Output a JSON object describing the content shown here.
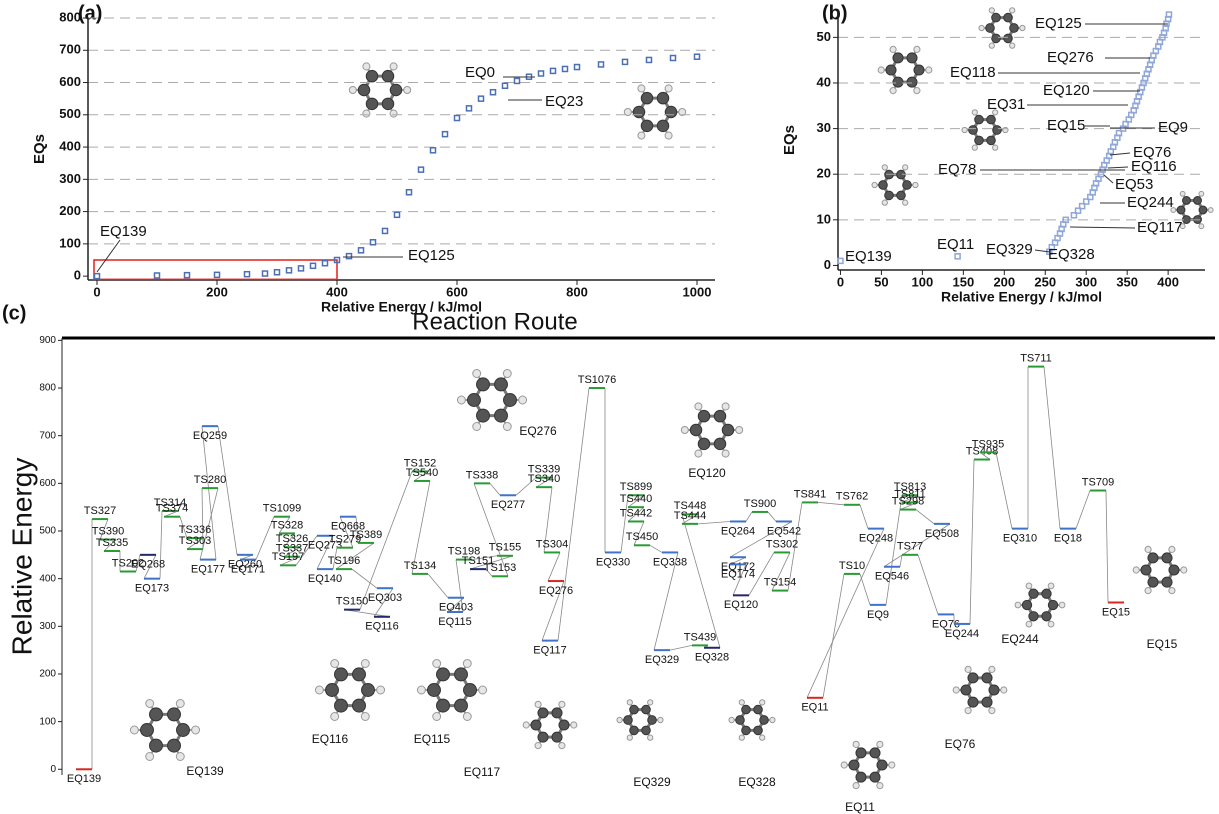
{
  "chart_data": [
    {
      "type": "scatter",
      "panel_label": "(a)",
      "x_label": "Relative Energy / kJ/mol",
      "y_label": "EQs",
      "color": "#4a6fb5",
      "x": [
        0,
        100,
        150,
        200,
        250,
        280,
        300,
        320,
        340,
        360,
        380,
        400,
        420,
        440,
        460,
        480,
        500,
        520,
        540,
        560,
        580,
        600,
        620,
        640,
        660,
        680,
        700,
        720,
        740,
        760,
        780,
        800,
        840,
        880,
        920,
        960,
        1000
      ],
      "values": [
        0,
        2,
        3,
        4,
        6,
        8,
        12,
        18,
        24,
        32,
        40,
        50,
        62,
        80,
        105,
        140,
        190,
        260,
        330,
        390,
        440,
        490,
        520,
        550,
        570,
        590,
        605,
        618,
        628,
        636,
        642,
        648,
        656,
        664,
        670,
        676,
        680
      ],
      "xlim": [
        -15,
        1030
      ],
      "ylim": [
        -12,
        800
      ],
      "xticks": [
        0,
        200,
        400,
        600,
        800,
        1000
      ],
      "yticks": [
        0,
        100,
        200,
        300,
        400,
        500,
        600,
        700,
        800
      ],
      "grid": true,
      "highlight_box": {
        "x": [
          -5,
          400
        ],
        "y": [
          -10,
          50
        ],
        "color": "#e0201a"
      },
      "annotations": [
        {
          "text": "EQ139",
          "color": "#111111"
        },
        {
          "text": "EQ125",
          "color": "#111111"
        },
        {
          "text": "EQ0",
          "color": "#111111"
        },
        {
          "text": "EQ23",
          "color": "#111111"
        }
      ]
    },
    {
      "type": "scatter",
      "panel_label": "(b)",
      "x_label": "Relative Energy / kJ/mol",
      "y_label": "EQs",
      "color": "#8fa6d8",
      "x": [
        0,
        143,
        255,
        258,
        262,
        265,
        268,
        270,
        272,
        275,
        285,
        290,
        295,
        300,
        305,
        308,
        310,
        312,
        315,
        318,
        320,
        322,
        325,
        328,
        330,
        333,
        335,
        338,
        340,
        345,
        348,
        352,
        355,
        358,
        360,
        362,
        364,
        366,
        368,
        370,
        372,
        374,
        376,
        378,
        380,
        382,
        385,
        388,
        390,
        393,
        395,
        397,
        398,
        400,
        401
      ],
      "values": [
        1,
        2,
        3,
        4,
        5,
        6,
        7,
        8,
        9,
        10,
        11,
        12,
        13,
        14,
        15,
        16,
        17,
        18,
        19,
        20,
        21,
        22,
        23,
        24,
        25,
        26,
        27,
        28,
        29,
        30,
        31,
        32,
        33,
        34,
        35,
        36,
        37,
        38,
        39,
        40,
        41,
        42,
        43,
        44,
        45,
        46,
        47,
        48,
        49,
        50,
        51,
        52,
        53,
        54,
        55
      ],
      "xlim": [
        -3,
        445
      ],
      "ylim": [
        -1,
        56
      ],
      "xticks": [
        0,
        50,
        100,
        150,
        200,
        250,
        300,
        350,
        400
      ],
      "yticks": [
        0,
        10,
        20,
        30,
        40,
        50
      ],
      "grid": true,
      "annotations": [
        {
          "text": "EQ125",
          "color": "#111111"
        },
        {
          "text": "EQ276",
          "color": "#d42a1f"
        },
        {
          "text": "EQ118",
          "color": "#111111"
        },
        {
          "text": "EQ120",
          "color": "#555555"
        },
        {
          "text": "EQ31",
          "color": "#111111"
        },
        {
          "text": "EQ15",
          "color": "#d42a1f"
        },
        {
          "text": "EQ9",
          "color": "#555555"
        },
        {
          "text": "EQ76",
          "color": "#555555"
        },
        {
          "text": "EQ116",
          "color": "#555555"
        },
        {
          "text": "EQ78",
          "color": "#111111"
        },
        {
          "text": "EQ53",
          "color": "#111111"
        },
        {
          "text": "EQ244",
          "color": "#555555"
        },
        {
          "text": "EQ117",
          "color": "#555555"
        },
        {
          "text": "EQ329",
          "color": "#555555"
        },
        {
          "text": "EQ328",
          "color": "#555555"
        },
        {
          "text": "EQ11",
          "color": "#d42a1f"
        },
        {
          "text": "EQ139",
          "color": "#d42a1f"
        }
      ]
    },
    {
      "type": "energy_diagram",
      "panel_label": "(c)",
      "title": "Reaction Route",
      "y_label": "Relative Energy",
      "ylim": [
        -12,
        905
      ],
      "yticks": [
        0,
        100,
        200,
        300,
        400,
        500,
        600,
        700,
        800,
        900
      ],
      "levels": [
        {
          "name": "EQ139",
          "value": 0,
          "color": "#d42a1f"
        },
        {
          "name": "TS327",
          "value": 525,
          "color": "#2a9a35"
        },
        {
          "name": "TS390",
          "value": 482,
          "color": "#2a9a35"
        },
        {
          "name": "TS335",
          "value": 458,
          "color": "#2a9a35"
        },
        {
          "name": "TS202",
          "value": 415,
          "color": "#2a9a35"
        },
        {
          "name": "EQ268",
          "value": 450,
          "color": "#22286a"
        },
        {
          "name": "EQ173",
          "value": 400,
          "color": "#3f72c8"
        },
        {
          "name": "TS314",
          "value": 542,
          "color": "#2a9a35"
        },
        {
          "name": "TS374",
          "value": 530,
          "color": "#2a9a35"
        },
        {
          "name": "TS336",
          "value": 485,
          "color": "#2a9a35"
        },
        {
          "name": "TS303",
          "value": 462,
          "color": "#2a9a35"
        },
        {
          "name": "TS280",
          "value": 590,
          "color": "#2a9a35"
        },
        {
          "name": "EQ177",
          "value": 440,
          "color": "#3f72c8"
        },
        {
          "name": "EQ259",
          "value": 720,
          "color": "#3f72c8"
        },
        {
          "name": "EQ260",
          "value": 450,
          "color": "#3f72c8"
        },
        {
          "name": "EQ171",
          "value": 440,
          "color": "#3f72c8"
        },
        {
          "name": "TS1099",
          "value": 530,
          "color": "#2a9a35"
        },
        {
          "name": "TS328",
          "value": 495,
          "color": "#2a9a35"
        },
        {
          "name": "TS326",
          "value": 466,
          "color": "#2a9a35"
        },
        {
          "name": "TS337",
          "value": 446,
          "color": "#2a9a35"
        },
        {
          "name": "TS197",
          "value": 428,
          "color": "#2a9a35"
        },
        {
          "name": "EQ273",
          "value": 490,
          "color": "#3f72c8"
        },
        {
          "name": "EQ140",
          "value": 420,
          "color": "#3f72c8"
        },
        {
          "name": "TS279",
          "value": 465,
          "color": "#2a9a35"
        },
        {
          "name": "EQ668",
          "value": 530,
          "color": "#3f72c8"
        },
        {
          "name": "TS389",
          "value": 475,
          "color": "#2a9a35"
        },
        {
          "name": "TS196",
          "value": 420,
          "color": "#2a9a35"
        },
        {
          "name": "EQ303",
          "value": 380,
          "color": "#3f72c8"
        },
        {
          "name": "EQ116",
          "value": 320,
          "color": "#22286a"
        },
        {
          "name": "TS150",
          "value": 335,
          "color": "#22286a"
        },
        {
          "name": "TS152",
          "value": 625,
          "color": "#2a9a35"
        },
        {
          "name": "TS540",
          "value": 605,
          "color": "#2a9a35"
        },
        {
          "name": "TS134",
          "value": 410,
          "color": "#2a9a35"
        },
        {
          "name": "EQ403",
          "value": 360,
          "color": "#3f72c8"
        },
        {
          "name": "EQ115",
          "value": 330,
          "color": "#3f72c8"
        },
        {
          "name": "TS198",
          "value": 440,
          "color": "#2a9a35"
        },
        {
          "name": "TS155",
          "value": 448,
          "color": "#2a9a35"
        },
        {
          "name": "TS151",
          "value": 420,
          "color": "#22286a"
        },
        {
          "name": "TS153",
          "value": 405,
          "color": "#2a9a35"
        },
        {
          "name": "TS338",
          "value": 600,
          "color": "#2a9a35"
        },
        {
          "name": "EQ277",
          "value": 575,
          "color": "#3f72c8"
        },
        {
          "name": "TS339",
          "value": 612,
          "color": "#2a9a35"
        },
        {
          "name": "TS340",
          "value": 592,
          "color": "#2a9a35"
        },
        {
          "name": "TS304",
          "value": 455,
          "color": "#2a9a35"
        },
        {
          "name": "EQ276",
          "value": 395,
          "color": "#d42a1f"
        },
        {
          "name": "EQ117",
          "value": 270,
          "color": "#3f72c8"
        },
        {
          "name": "TS1076",
          "value": 800,
          "color": "#2a9a35"
        },
        {
          "name": "EQ330",
          "value": 455,
          "color": "#3f72c8"
        },
        {
          "name": "TS899",
          "value": 575,
          "color": "#2a9a35"
        },
        {
          "name": "TS440",
          "value": 550,
          "color": "#2a9a35"
        },
        {
          "name": "TS442",
          "value": 520,
          "color": "#2a9a35"
        },
        {
          "name": "TS450",
          "value": 470,
          "color": "#2a9a35"
        },
        {
          "name": "EQ338",
          "value": 455,
          "color": "#3f72c8"
        },
        {
          "name": "EQ329",
          "value": 250,
          "color": "#3f72c8"
        },
        {
          "name": "TS439",
          "value": 260,
          "color": "#2a9a35"
        },
        {
          "name": "EQ328",
          "value": 255,
          "color": "#22286a"
        },
        {
          "name": "TS448",
          "value": 535,
          "color": "#2a9a35"
        },
        {
          "name": "TS444",
          "value": 515,
          "color": "#2a9a35"
        },
        {
          "name": "EQ264",
          "value": 520,
          "color": "#3f72c8"
        },
        {
          "name": "TS900",
          "value": 540,
          "color": "#2a9a35"
        },
        {
          "name": "EQ542",
          "value": 520,
          "color": "#3f72c8"
        },
        {
          "name": "EQ172",
          "value": 445,
          "color": "#3f72c8"
        },
        {
          "name": "EQ174",
          "value": 430,
          "color": "#3f72c8"
        },
        {
          "name": "EQ120",
          "value": 365,
          "color": "#22286a"
        },
        {
          "name": "TS302",
          "value": 455,
          "color": "#2a9a35"
        },
        {
          "name": "TS154",
          "value": 375,
          "color": "#2a9a35"
        },
        {
          "name": "TS841",
          "value": 560,
          "color": "#2a9a35"
        },
        {
          "name": "TS762",
          "value": 555,
          "color": "#2a9a35"
        },
        {
          "name": "EQ248",
          "value": 505,
          "color": "#3f72c8"
        },
        {
          "name": "EQ11",
          "value": 150,
          "color": "#d42a1f"
        },
        {
          "name": "TS10",
          "value": 410,
          "color": "#2a9a35"
        },
        {
          "name": "EQ9",
          "value": 345,
          "color": "#3f72c8"
        },
        {
          "name": "TS813",
          "value": 575,
          "color": "#2a9a35"
        },
        {
          "name": "TS811",
          "value": 560,
          "color": "#2a9a35"
        },
        {
          "name": "TS298",
          "value": 545,
          "color": "#2a9a35"
        },
        {
          "name": "EQ508",
          "value": 515,
          "color": "#3f72c8"
        },
        {
          "name": "EQ546",
          "value": 425,
          "color": "#3f72c8"
        },
        {
          "name": "TS77",
          "value": 450,
          "color": "#2a9a35"
        },
        {
          "name": "EQ76",
          "value": 325,
          "color": "#3f72c8"
        },
        {
          "name": "EQ244",
          "value": 305,
          "color": "#3f72c8"
        },
        {
          "name": "TS408",
          "value": 650,
          "color": "#2a9a35"
        },
        {
          "name": "TS935",
          "value": 665,
          "color": "#2a9a35"
        },
        {
          "name": "EQ310",
          "value": 505,
          "color": "#3f72c8"
        },
        {
          "name": "TS711",
          "value": 845,
          "color": "#2a9a35"
        },
        {
          "name": "EQ18",
          "value": 505,
          "color": "#3f72c8"
        },
        {
          "name": "TS709",
          "value": 585,
          "color": "#2a9a35"
        },
        {
          "name": "EQ15",
          "value": 350,
          "color": "#d42a1f"
        }
      ],
      "structure_labels": [
        "EQ276",
        "EQ120",
        "EQ116",
        "EQ115",
        "EQ139",
        "EQ117",
        "EQ329",
        "EQ328",
        "EQ11",
        "EQ76",
        "EQ244",
        "EQ15"
      ]
    }
  ]
}
